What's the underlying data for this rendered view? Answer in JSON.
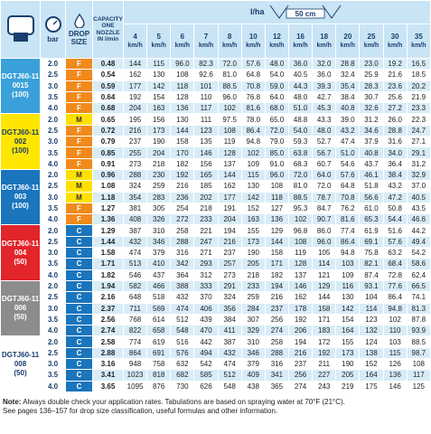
{
  "header": {
    "bar": "bar",
    "drop_size": "DROP SIZE",
    "capacity": "CAPACITY ONE NOZZLE IN l/min",
    "rate_unit": "l/ha",
    "spacing": "50 cm",
    "speeds": [
      "4",
      "5",
      "6",
      "7",
      "8",
      "10",
      "12",
      "16",
      "18",
      "20",
      "25",
      "30",
      "35"
    ],
    "speed_unit": "km/h"
  },
  "groups": [
    {
      "model": "DGTJ60-110015",
      "spacing": "(100)",
      "rows": [
        [
          "2.0",
          "F",
          "0.48",
          "144",
          "115",
          "96.0",
          "82.3",
          "72.0",
          "57.6",
          "48.0",
          "36.0",
          "32.0",
          "28.8",
          "23.0",
          "19.2",
          "16.5"
        ],
        [
          "2.5",
          "F",
          "0.54",
          "162",
          "130",
          "108",
          "92.6",
          "81.0",
          "64.8",
          "54.0",
          "40.5",
          "36.0",
          "32.4",
          "25.9",
          "21.6",
          "18.5"
        ],
        [
          "3.0",
          "F",
          "0.59",
          "177",
          "142",
          "118",
          "101",
          "88.5",
          "70.8",
          "59.0",
          "44.3",
          "39.3",
          "35.4",
          "28.3",
          "23.6",
          "20.2"
        ],
        [
          "3.5",
          "F",
          "0.64",
          "192",
          "154",
          "128",
          "110",
          "96.0",
          "76.8",
          "64.0",
          "48.0",
          "42.7",
          "38.4",
          "30.7",
          "25.6",
          "21.9"
        ],
        [
          "4.0",
          "F",
          "0.68",
          "204",
          "163",
          "136",
          "117",
          "102",
          "81.6",
          "68.0",
          "51.0",
          "45.3",
          "40.8",
          "32.6",
          "27.2",
          "23.3"
        ]
      ]
    },
    {
      "model": "DGTJ60-11002",
      "spacing": "(100)",
      "rows": [
        [
          "2.0",
          "M",
          "0.65",
          "195",
          "156",
          "130",
          "111",
          "97.5",
          "78.0",
          "65.0",
          "48.8",
          "43.3",
          "39.0",
          "31.2",
          "26.0",
          "22.3"
        ],
        [
          "2.5",
          "F",
          "0.72",
          "216",
          "173",
          "144",
          "123",
          "108",
          "86.4",
          "72.0",
          "54.0",
          "48.0",
          "43.2",
          "34.6",
          "28.8",
          "24.7"
        ],
        [
          "3.0",
          "F",
          "0.79",
          "237",
          "190",
          "158",
          "135",
          "119",
          "94.8",
          "79.0",
          "59.3",
          "52.7",
          "47.4",
          "37.9",
          "31.6",
          "27.1"
        ],
        [
          "3.5",
          "F",
          "0.85",
          "255",
          "204",
          "170",
          "146",
          "128",
          "102",
          "85.0",
          "63.8",
          "56.7",
          "51.0",
          "40.8",
          "34.0",
          "29.1"
        ],
        [
          "4.0",
          "F",
          "0.91",
          "273",
          "218",
          "182",
          "156",
          "137",
          "109",
          "91.0",
          "68.3",
          "60.7",
          "54.6",
          "43.7",
          "36.4",
          "31.2"
        ]
      ]
    },
    {
      "model": "DGTJ60-11003",
      "spacing": "(100)",
      "rows": [
        [
          "2.0",
          "M",
          "0.96",
          "288",
          "230",
          "192",
          "165",
          "144",
          "115",
          "96.0",
          "72.0",
          "64.0",
          "57.6",
          "46.1",
          "38.4",
          "32.9"
        ],
        [
          "2.5",
          "M",
          "1.08",
          "324",
          "259",
          "216",
          "185",
          "162",
          "130",
          "108",
          "81.0",
          "72.0",
          "64.8",
          "51.8",
          "43.2",
          "37.0"
        ],
        [
          "3.0",
          "M",
          "1.18",
          "354",
          "283",
          "236",
          "202",
          "177",
          "142",
          "118",
          "88.5",
          "78.7",
          "70.8",
          "56.6",
          "47.2",
          "40.5"
        ],
        [
          "3.5",
          "F",
          "1.27",
          "381",
          "305",
          "254",
          "218",
          "191",
          "152",
          "127",
          "95.3",
          "84.7",
          "76.2",
          "61.0",
          "50.8",
          "43.5"
        ],
        [
          "4.0",
          "F",
          "1.36",
          "408",
          "326",
          "272",
          "233",
          "204",
          "163",
          "136",
          "102",
          "90.7",
          "81.6",
          "65.3",
          "54.4",
          "46.6"
        ]
      ]
    },
    {
      "model": "DGTJ60-11004",
      "spacing": "(50)",
      "rows": [
        [
          "2.0",
          "C",
          "1.29",
          "387",
          "310",
          "258",
          "221",
          "194",
          "155",
          "129",
          "96.8",
          "86.0",
          "77.4",
          "61.9",
          "51.6",
          "44.2"
        ],
        [
          "2.5",
          "C",
          "1.44",
          "432",
          "346",
          "288",
          "247",
          "216",
          "173",
          "144",
          "108",
          "96.0",
          "86.4",
          "69.1",
          "57.6",
          "49.4"
        ],
        [
          "3.0",
          "C",
          "1.58",
          "474",
          "379",
          "316",
          "271",
          "237",
          "190",
          "158",
          "119",
          "105",
          "94.8",
          "75.8",
          "63.2",
          "54.2"
        ],
        [
          "3.5",
          "C",
          "1.71",
          "513",
          "410",
          "342",
          "293",
          "257",
          "205",
          "171",
          "128",
          "114",
          "103",
          "82.1",
          "68.4",
          "58.6"
        ],
        [
          "4.0",
          "C",
          "1.82",
          "546",
          "437",
          "364",
          "312",
          "273",
          "218",
          "182",
          "137",
          "121",
          "109",
          "87.4",
          "72.8",
          "62.4"
        ]
      ]
    },
    {
      "model": "DGTJ60-11006",
      "spacing": "(50)",
      "rows": [
        [
          "2.0",
          "C",
          "1.94",
          "582",
          "466",
          "388",
          "333",
          "291",
          "233",
          "194",
          "146",
          "129",
          "116",
          "93.1",
          "77.6",
          "66.5"
        ],
        [
          "2.5",
          "C",
          "2.16",
          "648",
          "518",
          "432",
          "370",
          "324",
          "259",
          "216",
          "162",
          "144",
          "130",
          "104",
          "86.4",
          "74.1"
        ],
        [
          "3.0",
          "C",
          "2.37",
          "711",
          "569",
          "474",
          "406",
          "356",
          "284",
          "237",
          "178",
          "158",
          "142",
          "114",
          "94.8",
          "81.3"
        ],
        [
          "3.5",
          "C",
          "2.56",
          "768",
          "614",
          "512",
          "439",
          "384",
          "307",
          "256",
          "192",
          "171",
          "154",
          "123",
          "102",
          "87.8"
        ],
        [
          "4.0",
          "C",
          "2.74",
          "822",
          "658",
          "548",
          "470",
          "411",
          "329",
          "274",
          "206",
          "183",
          "164",
          "132",
          "110",
          "93.9"
        ]
      ]
    },
    {
      "model": "DGTJ60-11008",
      "spacing": "(50)",
      "rows": [
        [
          "2.0",
          "C",
          "2.58",
          "774",
          "619",
          "516",
          "442",
          "387",
          "310",
          "258",
          "194",
          "172",
          "155",
          "124",
          "103",
          "88.5"
        ],
        [
          "2.5",
          "C",
          "2.88",
          "864",
          "691",
          "576",
          "494",
          "432",
          "346",
          "288",
          "216",
          "192",
          "173",
          "138",
          "115",
          "98.7"
        ],
        [
          "3.0",
          "C",
          "3.16",
          "948",
          "758",
          "632",
          "542",
          "474",
          "379",
          "316",
          "237",
          "211",
          "190",
          "152",
          "126",
          "108"
        ],
        [
          "3.5",
          "C",
          "3.41",
          "1023",
          "818",
          "682",
          "585",
          "512",
          "409",
          "341",
          "256",
          "227",
          "205",
          "164",
          "136",
          "117"
        ],
        [
          "4.0",
          "C",
          "3.65",
          "1095",
          "876",
          "730",
          "626",
          "548",
          "438",
          "365",
          "274",
          "243",
          "219",
          "175",
          "146",
          "125"
        ]
      ]
    }
  ],
  "notes": {
    "label": "Note:",
    "text": " Always double check your application rates. Tabulations are based on spraying water at 70°F (21°C).",
    "line2": "See pages 136–157 for drop size classification, useful formulas and other information."
  }
}
